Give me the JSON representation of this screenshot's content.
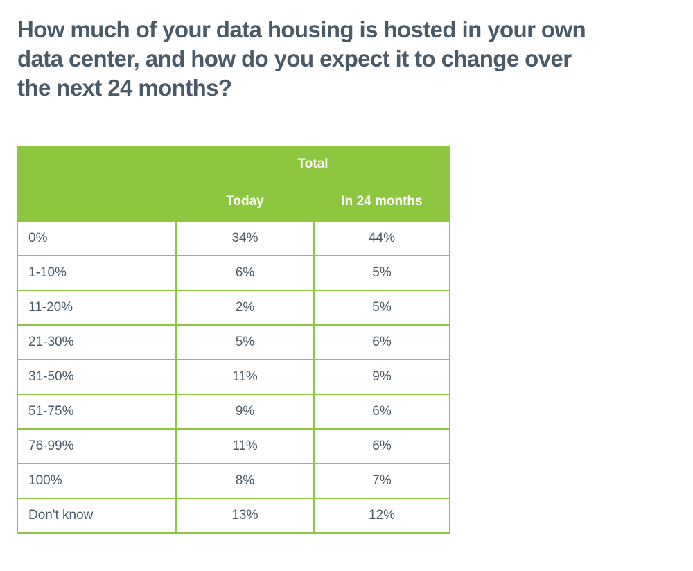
{
  "page": {
    "title_full": "How much of your data housing is hosted in your own data center, and how do you expect it to change over the next 24 months?",
    "title_lines": [
      "How much of your data housing is hosted in your own",
      "data center, and how do you expect it to change over",
      "the next 24 months?"
    ]
  },
  "colors": {
    "header_green": "#8DC63F",
    "border_green": "#8DC63F",
    "title_text": "#4B5A66",
    "cell_text": "#4B5A66",
    "header_text": "#FFFFFF"
  },
  "table": {
    "group_header": "Total",
    "columns": [
      "Today",
      "In 24 months"
    ],
    "rows": [
      {
        "label": "0%",
        "today": "34%",
        "in_24_months": "44%"
      },
      {
        "label": "1-10%",
        "today": "6%",
        "in_24_months": "5%"
      },
      {
        "label": "11-20%",
        "today": "2%",
        "in_24_months": "5%"
      },
      {
        "label": "21-30%",
        "today": "5%",
        "in_24_months": "6%"
      },
      {
        "label": "31-50%",
        "today": "11%",
        "in_24_months": "9%"
      },
      {
        "label": "51-75%",
        "today": "9%",
        "in_24_months": "6%"
      },
      {
        "label": "76-99%",
        "today": "11%",
        "in_24_months": "6%"
      },
      {
        "label": "100%",
        "today": "8%",
        "in_24_months": "7%"
      },
      {
        "label": "Don't know",
        "today": "13%",
        "in_24_months": "12%"
      }
    ]
  },
  "chart_data": {
    "type": "table",
    "title": "How much of your data housing is hosted in your own data center, and how do you expect it to change over the next 24 months?",
    "group_header": "Total",
    "columns": [
      "Today",
      "In 24 months"
    ],
    "categories": [
      "0%",
      "1-10%",
      "11-20%",
      "21-30%",
      "31-50%",
      "51-75%",
      "76-99%",
      "100%",
      "Don't know"
    ],
    "series": [
      {
        "name": "Today",
        "values": [
          34,
          6,
          2,
          5,
          11,
          9,
          11,
          8,
          13
        ]
      },
      {
        "name": "In 24 months",
        "values": [
          44,
          5,
          5,
          6,
          9,
          6,
          6,
          7,
          12
        ]
      }
    ],
    "values_format": "percent"
  }
}
